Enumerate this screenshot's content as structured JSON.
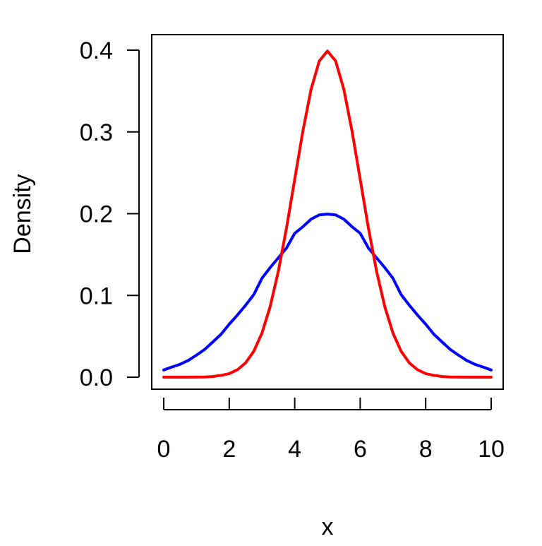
{
  "chart_data": {
    "type": "line",
    "title": "",
    "xlabel": "x",
    "ylabel": "Density",
    "xlim": [
      0,
      10
    ],
    "ylim": [
      0,
      0.4
    ],
    "x_ticks": [
      0,
      2,
      4,
      6,
      8,
      10
    ],
    "x_tick_labels": [
      "0",
      "2",
      "4",
      "6",
      "8",
      "10"
    ],
    "y_ticks": [
      0,
      0.1,
      0.2,
      0.3,
      0.4
    ],
    "y_tick_labels": [
      "0.0",
      "0.1",
      "0.2",
      "0.3",
      "0.4"
    ],
    "grid": false,
    "legend": "none",
    "x": [
      0,
      0.25,
      0.5,
      0.75,
      1,
      1.25,
      1.5,
      1.75,
      2,
      2.25,
      2.5,
      2.75,
      3,
      3.25,
      3.5,
      3.75,
      4,
      4.25,
      4.5,
      4.75,
      5,
      5.25,
      5.5,
      5.75,
      6,
      6.25,
      6.5,
      6.75,
      7,
      7.25,
      7.5,
      7.75,
      8,
      8.25,
      8.5,
      8.75,
      9,
      9.25,
      9.5,
      9.75,
      10
    ],
    "series": [
      {
        "color": "#FF0000",
        "values": [
          0.0,
          0.0,
          0.0,
          0.0,
          0.0001,
          0.0002,
          0.0009,
          0.0022,
          0.0044,
          0.0091,
          0.0175,
          0.0317,
          0.054,
          0.0863,
          0.1295,
          0.1826,
          0.242,
          0.3011,
          0.3521,
          0.3867,
          0.3989,
          0.3867,
          0.3521,
          0.3011,
          0.242,
          0.1826,
          0.1295,
          0.0863,
          0.054,
          0.0317,
          0.0175,
          0.0091,
          0.0044,
          0.0022,
          0.0009,
          0.0002,
          0.0001,
          0.0,
          0.0,
          0.0,
          0.0
        ]
      },
      {
        "color": "#0000FF",
        "values": [
          0.0088,
          0.0124,
          0.0158,
          0.0205,
          0.027,
          0.0339,
          0.0431,
          0.0525,
          0.0648,
          0.076,
          0.088,
          0.101,
          0.121,
          0.134,
          0.146,
          0.158,
          0.176,
          0.184,
          0.1933,
          0.1985,
          0.1995,
          0.1985,
          0.1933,
          0.184,
          0.176,
          0.158,
          0.146,
          0.134,
          0.121,
          0.101,
          0.088,
          0.076,
          0.0648,
          0.0525,
          0.0431,
          0.0339,
          0.027,
          0.0205,
          0.0158,
          0.0124,
          0.0088
        ]
      }
    ]
  }
}
